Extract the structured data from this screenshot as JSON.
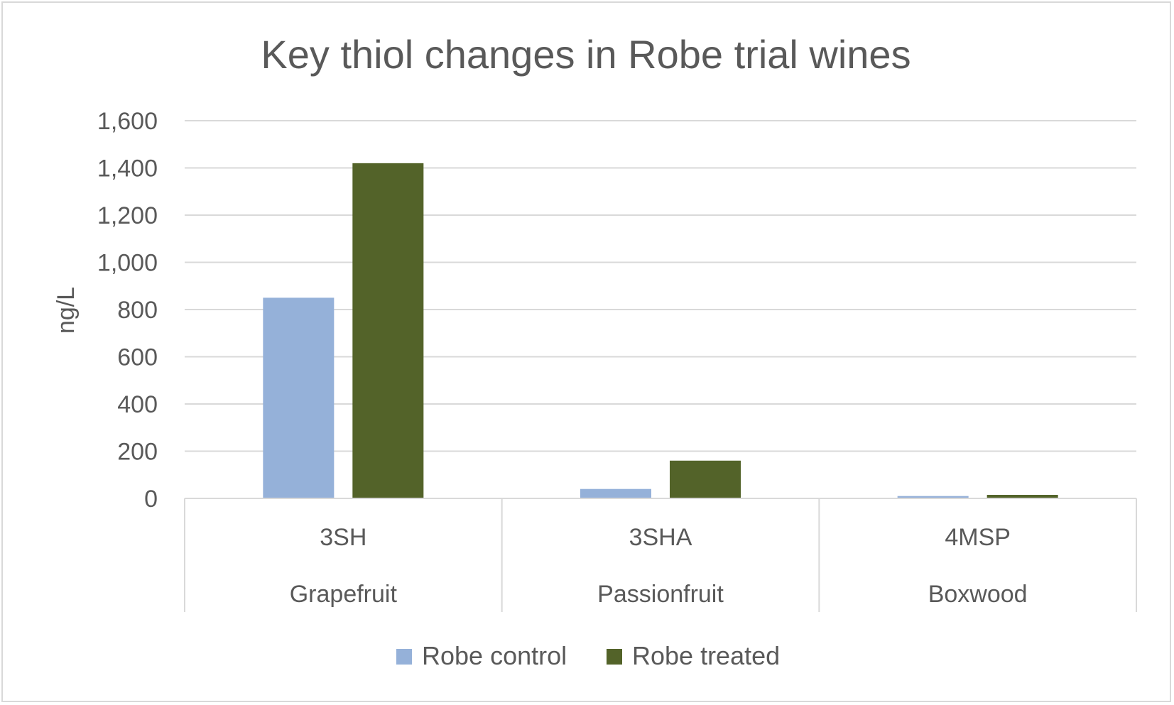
{
  "chart_data": {
    "type": "bar",
    "title": "Key thiol changes in Robe trial wines",
    "xlabel": "",
    "ylabel": "ng/L",
    "ylim": [
      0,
      1600
    ],
    "yticks": [
      0,
      200,
      400,
      600,
      800,
      1000,
      1200,
      1400,
      1600
    ],
    "ytick_labels": [
      "0",
      "200",
      "400",
      "600",
      "800",
      "1,000",
      "1,200",
      "1,400",
      "1,600"
    ],
    "categories": [
      "3SH",
      "3SHA",
      "4MSP"
    ],
    "category_groups": [
      "Grapefruit",
      "Passionfruit",
      "Boxwood"
    ],
    "series": [
      {
        "name": "Robe control",
        "color": "#95b1d9",
        "values": [
          850,
          40,
          10
        ]
      },
      {
        "name": "Robe treated",
        "color": "#536329",
        "values": [
          1420,
          160,
          15
        ]
      }
    ],
    "grid": true,
    "legend_position": "bottom"
  },
  "colors": {
    "text": "#595959",
    "gridline": "#d9d9d9",
    "axis": "#d9d9d9"
  }
}
